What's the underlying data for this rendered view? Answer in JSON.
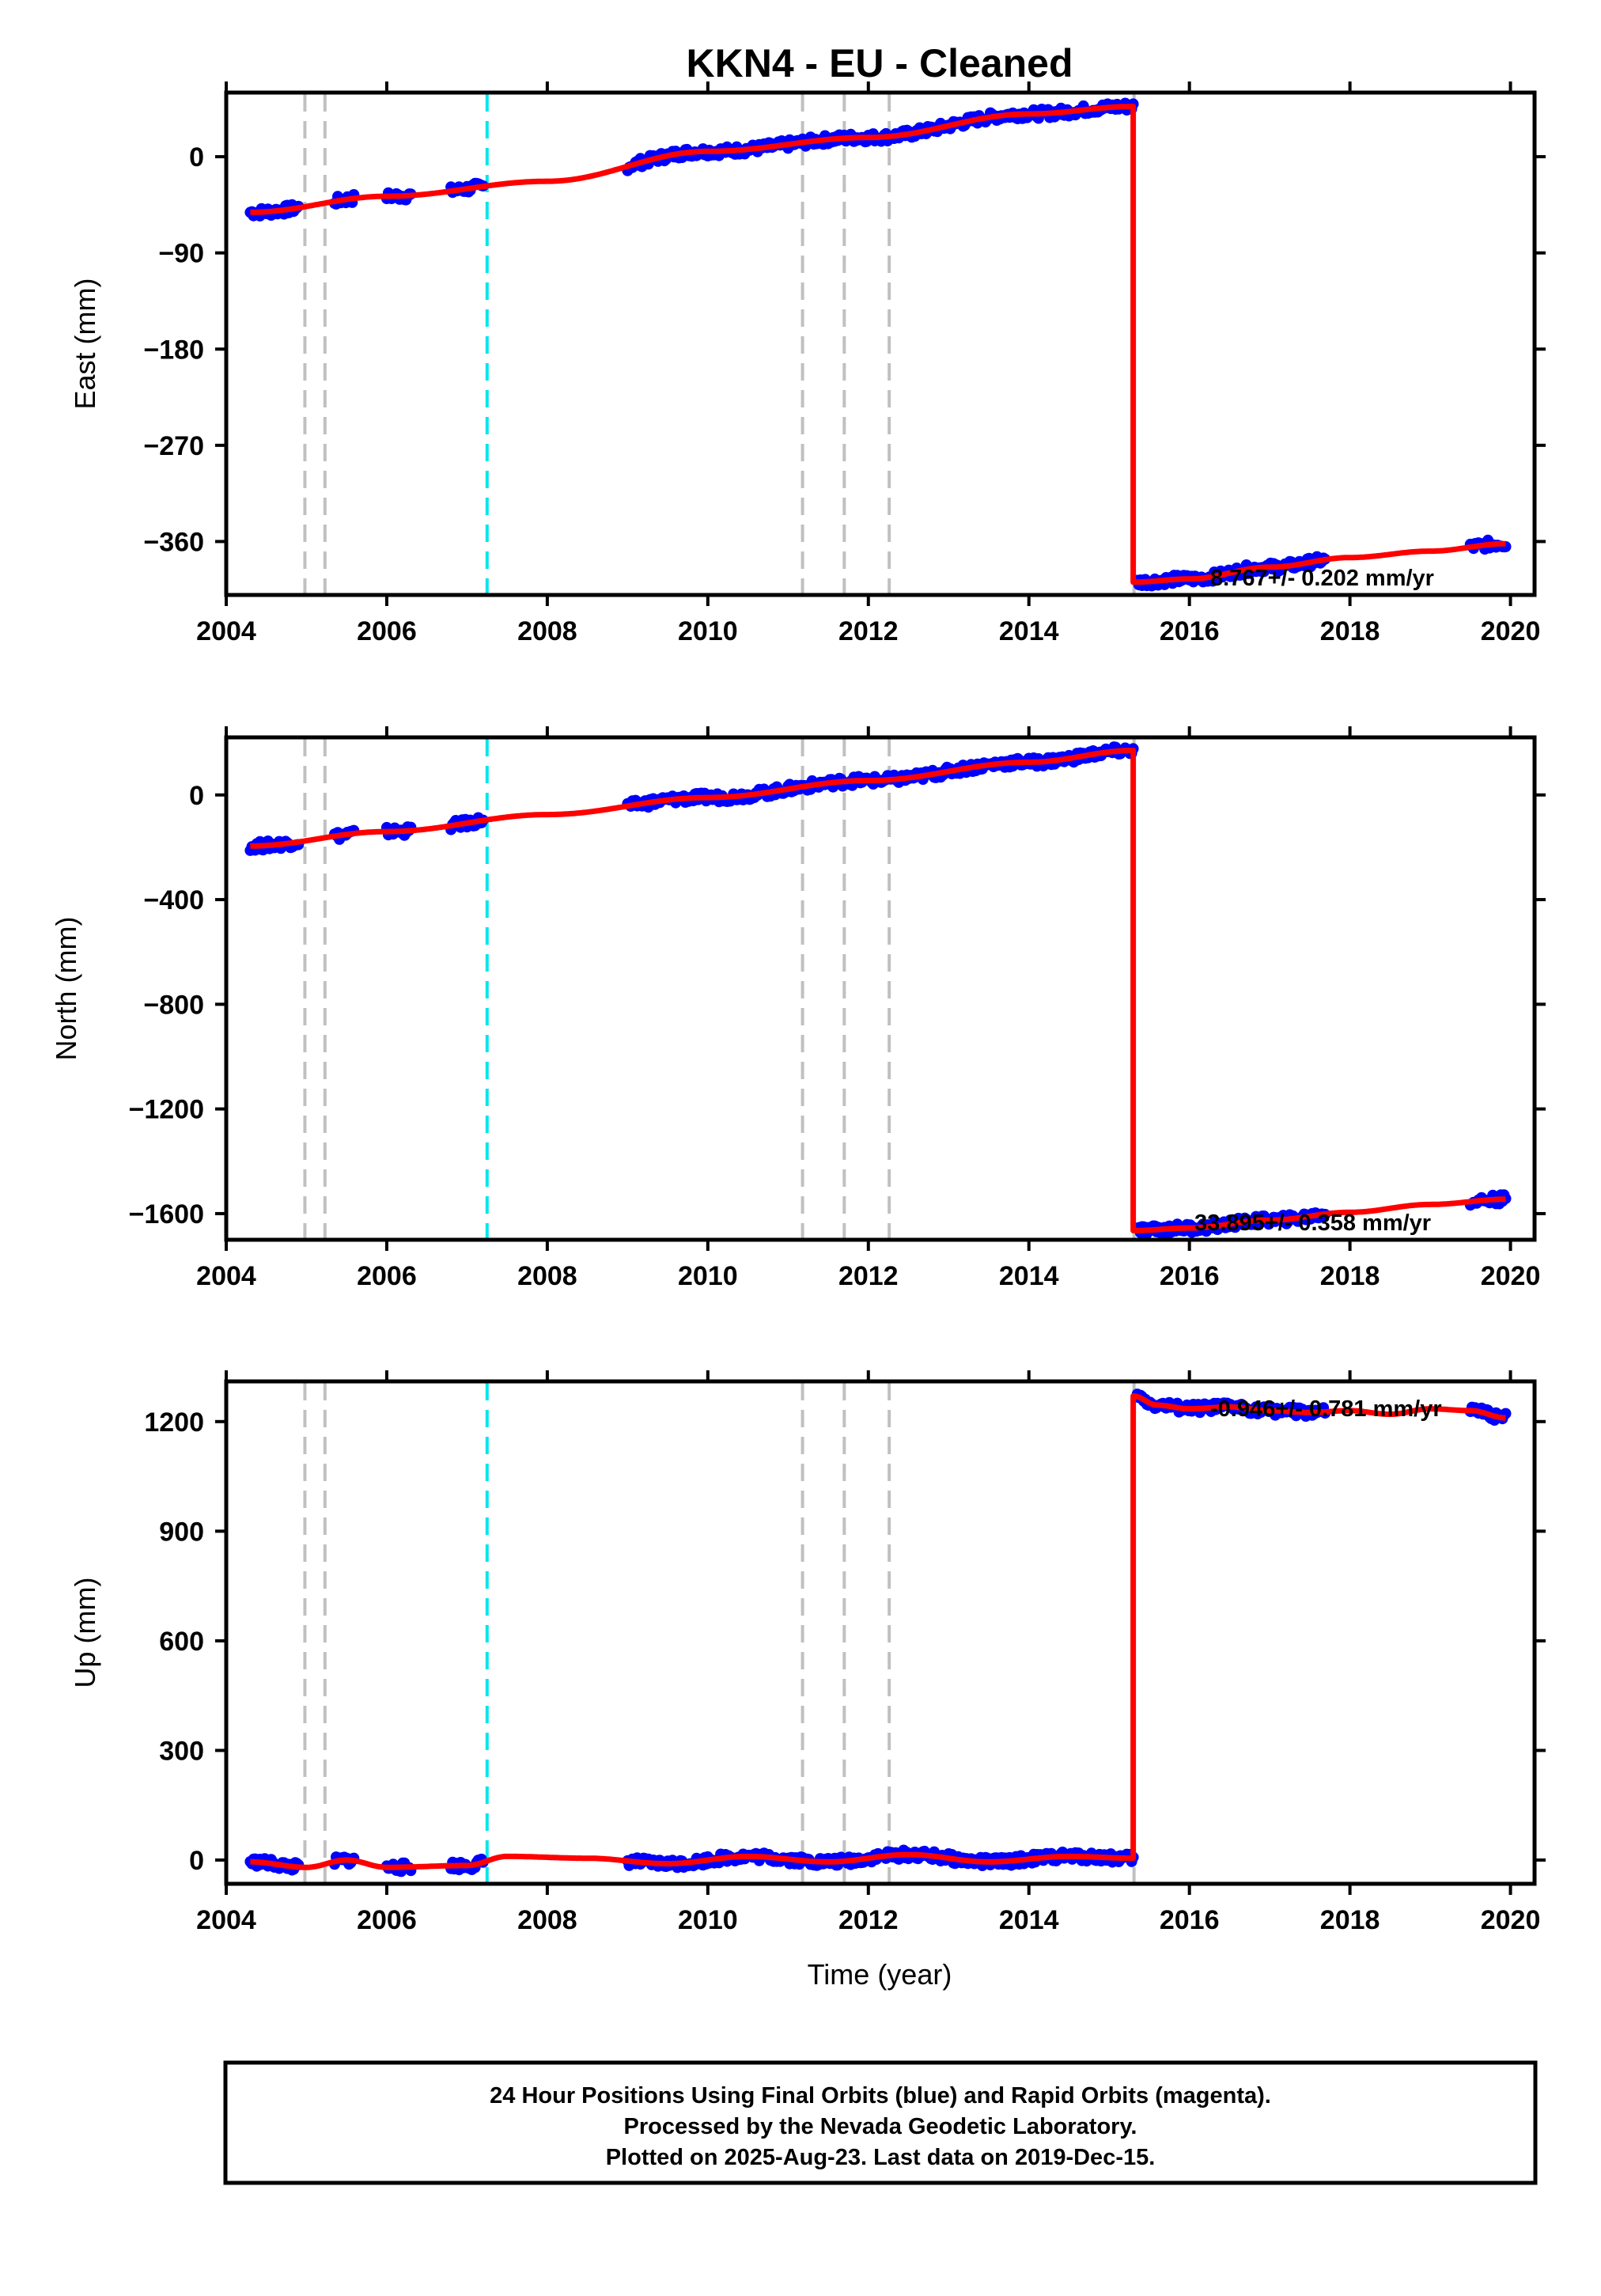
{
  "title": "KKN4  - EU - Cleaned",
  "xlabel": "Time (year)",
  "caption": {
    "line1": "24 Hour Positions Using Final Orbits (blue) and Rapid Orbits (magenta).",
    "line2": "Processed by the Nevada Geodetic Laboratory.",
    "line3": "Plotted on 2025-Aug-23. Last data on 2019-Dec-15."
  },
  "colors": {
    "data_points": "#0000ff",
    "model_line": "#ff0000",
    "equipment_change_line": "#c0c0c0",
    "earthquake_line": "#00e5ee"
  },
  "chart_data": [
    {
      "type": "line",
      "component": "East",
      "ylabel": "East (mm)",
      "xlim": [
        2004.0,
        2020.3
      ],
      "ylim": [
        -410,
        60
      ],
      "xticks": [
        2004,
        2006,
        2008,
        2010,
        2012,
        2014,
        2016,
        2018,
        2020
      ],
      "yticks": [
        0,
        -90,
        -180,
        -270,
        -360
      ],
      "grid": false,
      "rate_text": "8.767+/- 0.202 mm/yr",
      "vertical_lines_gray": [
        2004.98,
        2005.23,
        2011.18,
        2011.7,
        2012.26,
        2015.31
      ],
      "vertical_lines_cyan": [
        2007.25
      ],
      "segments": [
        {
          "x": [
            2004.3,
            2006.0,
            2008.0,
            2010.0,
            2012.0,
            2014.0,
            2015.3
          ],
          "y": [
            -52,
            -37,
            -23,
            5,
            18,
            40,
            47
          ]
        },
        {
          "x": [
            2015.3,
            2016.0,
            2017.0,
            2018.0,
            2019.0,
            2019.95
          ],
          "y": [
            -398,
            -395,
            -384,
            -375,
            -369,
            -362
          ]
        }
      ],
      "data_intervals": [
        [
          2004.3,
          2004.9
        ],
        [
          2005.35,
          2005.6
        ],
        [
          2006.0,
          2006.3
        ],
        [
          2006.8,
          2007.2
        ],
        [
          2009.0,
          2015.3
        ],
        [
          2015.35,
          2017.7
        ],
        [
          2019.5,
          2019.95
        ]
      ]
    },
    {
      "type": "line",
      "component": "North",
      "ylabel": "North (mm)",
      "xlim": [
        2004.0,
        2020.3
      ],
      "ylim": [
        -1700,
        220
      ],
      "xticks": [
        2004,
        2006,
        2008,
        2010,
        2012,
        2014,
        2016,
        2018,
        2020
      ],
      "yticks": [
        0,
        -400,
        -800,
        -1200,
        -1600
      ],
      "grid": false,
      "rate_text": "33.895+/- 0.358 mm/yr",
      "vertical_lines_gray": [
        2004.98,
        2005.23,
        2011.18,
        2011.7,
        2012.26,
        2015.31
      ],
      "vertical_lines_cyan": [
        2007.25
      ],
      "segments": [
        {
          "x": [
            2004.3,
            2006.0,
            2008.0,
            2010.0,
            2012.0,
            2014.0,
            2015.3
          ],
          "y": [
            -195,
            -140,
            -75,
            -10,
            55,
            125,
            170
          ]
        },
        {
          "x": [
            2015.3,
            2016.0,
            2017.0,
            2018.0,
            2019.0,
            2019.95
          ],
          "y": [
            -1665,
            -1655,
            -1625,
            -1595,
            -1565,
            -1545
          ]
        }
      ],
      "data_intervals": [
        [
          2004.3,
          2004.9
        ],
        [
          2005.35,
          2005.6
        ],
        [
          2006.0,
          2006.3
        ],
        [
          2006.8,
          2007.2
        ],
        [
          2009.0,
          2015.3
        ],
        [
          2015.35,
          2017.7
        ],
        [
          2019.5,
          2019.95
        ]
      ]
    },
    {
      "type": "line",
      "component": "Up",
      "ylabel": "Up (mm)",
      "xlim": [
        2004.0,
        2020.3
      ],
      "ylim": [
        -65,
        1310
      ],
      "xticks": [
        2004,
        2006,
        2008,
        2010,
        2012,
        2014,
        2016,
        2018,
        2020
      ],
      "yticks": [
        1200,
        900,
        600,
        300,
        0
      ],
      "grid": false,
      "rate_text": "-0.946+/- 0.781 mm/yr",
      "vertical_lines_gray": [
        2004.98,
        2005.23,
        2011.18,
        2011.7,
        2012.26,
        2015.31
      ],
      "vertical_lines_cyan": [
        2007.25
      ],
      "segments": [
        {
          "x": [
            2004.3,
            2005.0,
            2005.5,
            2006.0,
            2007.0,
            2007.5,
            2008.5,
            2009.5,
            2010.5,
            2011.5,
            2012.5,
            2013.5,
            2014.5,
            2015.3
          ],
          "y": [
            -5,
            -20,
            0,
            -20,
            -15,
            10,
            5,
            -10,
            10,
            -5,
            15,
            -5,
            10,
            5
          ]
        },
        {
          "x": [
            2015.3,
            2015.6,
            2016.0,
            2016.5,
            2017.0,
            2017.5,
            2018.0,
            2018.5,
            2019.0,
            2019.5,
            2019.95
          ],
          "y": [
            1270,
            1245,
            1235,
            1240,
            1230,
            1225,
            1230,
            1220,
            1235,
            1230,
            1210
          ]
        }
      ],
      "data_intervals": [
        [
          2004.3,
          2004.9
        ],
        [
          2005.35,
          2005.6
        ],
        [
          2006.0,
          2006.3
        ],
        [
          2006.8,
          2007.2
        ],
        [
          2009.0,
          2015.3
        ],
        [
          2015.35,
          2017.7
        ],
        [
          2019.5,
          2019.95
        ]
      ]
    }
  ]
}
